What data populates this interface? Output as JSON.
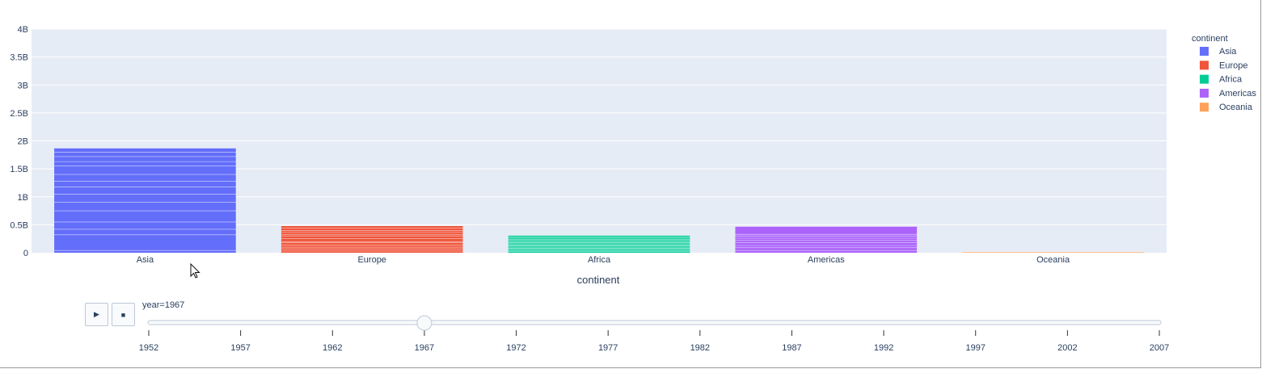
{
  "chart_data": {
    "type": "bar",
    "barmode": "stack",
    "categories": [
      "Asia",
      "Europe",
      "Africa",
      "Americas",
      "Oceania"
    ],
    "values": [
      1.87,
      0.48,
      0.31,
      0.47,
      0.014
    ],
    "value_unit": "billions",
    "xlabel": "continent",
    "ylabel": "",
    "ylim": [
      0,
      4
    ],
    "yticks": [
      {
        "v": 0,
        "label": "0"
      },
      {
        "v": 0.5,
        "label": "0.5B"
      },
      {
        "v": 1,
        "label": "1B"
      },
      {
        "v": 1.5,
        "label": "1.5B"
      },
      {
        "v": 2,
        "label": "2B"
      },
      {
        "v": 2.5,
        "label": "2.5B"
      },
      {
        "v": 3,
        "label": "3B"
      },
      {
        "v": 3.5,
        "label": "3.5B"
      },
      {
        "v": 4,
        "label": "4B"
      }
    ],
    "grid": true,
    "colors": {
      "Asia": "#636efa",
      "Europe": "#ef553b",
      "Africa": "#00cc96",
      "Americas": "#ab63fa",
      "Oceania": "#ffa15a"
    },
    "segment_lines": {
      "Asia": [
        0.04,
        0.32,
        0.42,
        0.55,
        0.75,
        0.9,
        1.05,
        1.18,
        1.28,
        1.4,
        1.55,
        1.63,
        1.72,
        1.8
      ],
      "Europe": [
        0.03,
        0.07,
        0.1,
        0.14,
        0.18,
        0.2,
        0.25,
        0.3,
        0.33,
        0.37,
        0.4,
        0.44
      ],
      "Africa": [
        0.02,
        0.04,
        0.06,
        0.08,
        0.1,
        0.12,
        0.14,
        0.16,
        0.18,
        0.2,
        0.22,
        0.24,
        0.26,
        0.28
      ],
      "Americas": [
        0.04,
        0.09,
        0.13,
        0.18,
        0.22,
        0.26,
        0.3,
        0.33
      ]
    },
    "legend": {
      "title": "continent",
      "position": "top-right",
      "items": [
        "Asia",
        "Europe",
        "Africa",
        "Americas",
        "Oceania"
      ]
    }
  },
  "slider": {
    "current_label": "year=1967",
    "years": [
      "1952",
      "1957",
      "1962",
      "1967",
      "1972",
      "1977",
      "1982",
      "1987",
      "1992",
      "1997",
      "2002",
      "2007"
    ],
    "active_index": 3
  },
  "controls": {
    "play_icon": "play-icon",
    "stop_icon": "stop-icon",
    "play_glyph": "▶",
    "stop_glyph": "■"
  }
}
